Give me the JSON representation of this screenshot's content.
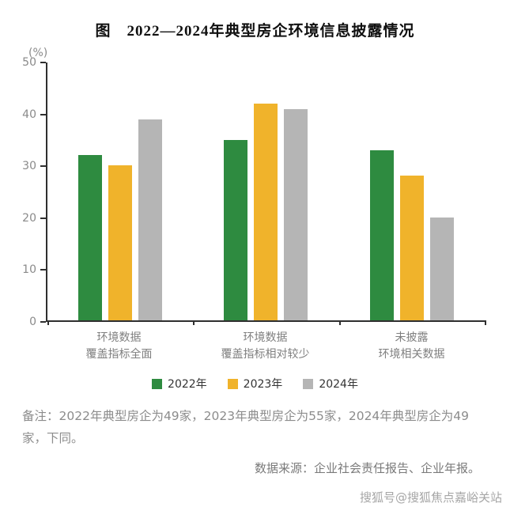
{
  "page": {
    "title": "图　2022—2024年典型房企环境信息披露情况",
    "note": "备注：2022年典型房企为49家，2023年典型房企为55家，2024年典型房企为49家，下同。",
    "source": "数据来源：企业社会责任报告、企业年报。",
    "watermark": "搜狐号@搜狐焦点嘉峪关站"
  },
  "chart_data": {
    "type": "bar",
    "title": "2022—2024年典型房企环境信息披露情况",
    "unit_label": "(%)",
    "categories": [
      [
        "环境数据",
        "覆盖指标全面"
      ],
      [
        "环境数据",
        "覆盖指标相对较少"
      ],
      [
        "未披露",
        "环境相关数据"
      ]
    ],
    "series": [
      {
        "name": "2022年",
        "color": "#2e8b40",
        "values": [
          32,
          35,
          33
        ]
      },
      {
        "name": "2023年",
        "color": "#f0b32b",
        "values": [
          30,
          42,
          28
        ]
      },
      {
        "name": "2024年",
        "color": "#b5b5b5",
        "values": [
          39,
          41,
          20
        ]
      }
    ],
    "ylim": [
      0,
      50
    ],
    "yticks": [
      0,
      10,
      20,
      30,
      40,
      50
    ],
    "grid": false,
    "legend_position": "bottom",
    "axis_color": "#2f2f2f"
  }
}
